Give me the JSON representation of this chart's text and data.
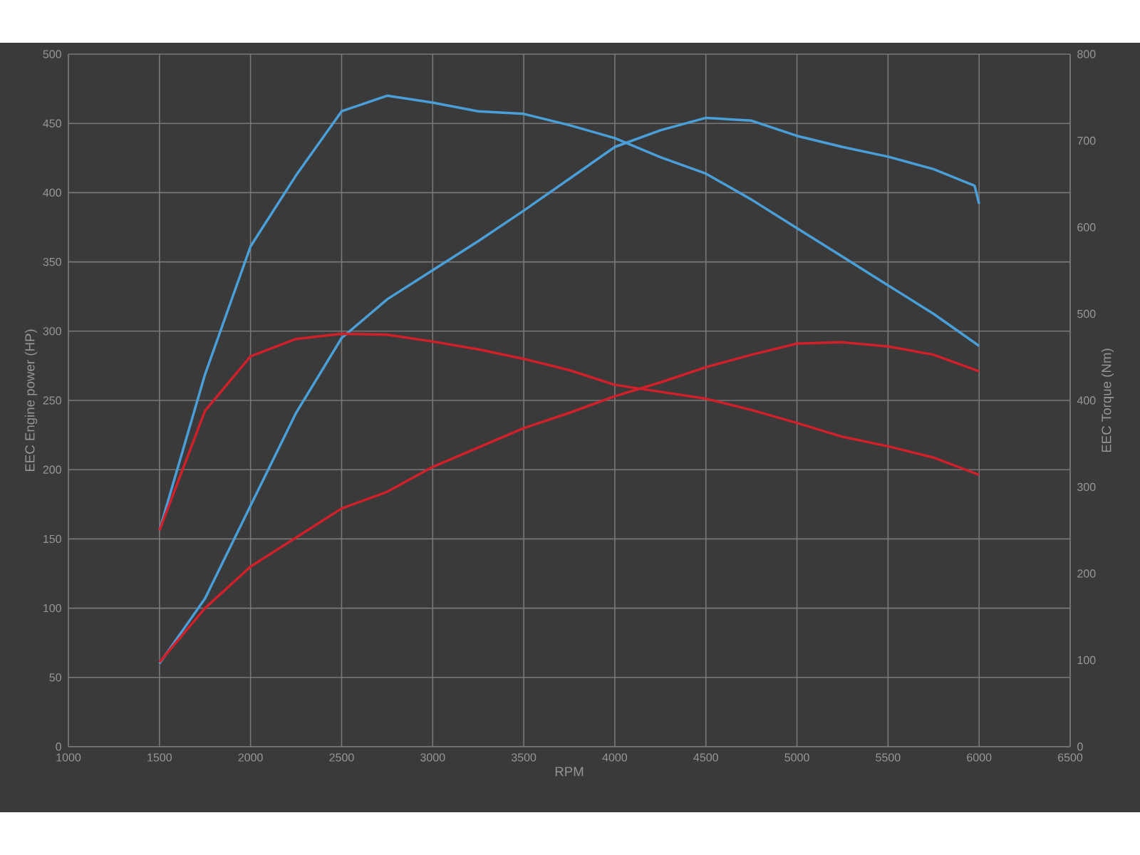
{
  "chart_data": {
    "type": "line",
    "xlabel": "RPM",
    "ylabel": "EEC Engine power (HP)",
    "y2label": "EEC Torque (Nm)",
    "x": [
      1500,
      1750,
      2000,
      2250,
      2500,
      2750,
      3000,
      3250,
      3500,
      3750,
      4000,
      4250,
      4500,
      4750,
      5000,
      5250,
      5500,
      5750,
      6000
    ],
    "xlim": [
      1000,
      6500
    ],
    "xticks": [
      1000,
      1500,
      2000,
      2500,
      3000,
      3500,
      4000,
      4500,
      5000,
      5500,
      6000,
      6500
    ],
    "ylim": [
      0,
      500
    ],
    "yticks": [
      0,
      50,
      100,
      150,
      200,
      250,
      300,
      350,
      400,
      450,
      500
    ],
    "y2lim": [
      0,
      800
    ],
    "y2ticks": [
      0,
      100,
      200,
      300,
      400,
      500,
      600,
      700,
      800
    ],
    "grid": true,
    "marker": "none",
    "line_style": "solid",
    "series": [
      {
        "color": "#4a9fd8",
        "x": [
          1500,
          1750,
          2000,
          2250,
          2500,
          2750,
          3000,
          3250,
          3500,
          3750,
          4000,
          4250,
          4500,
          4750,
          5000,
          5250,
          5500,
          5750,
          5975,
          6000
        ],
        "values": [
          60,
          107,
          174,
          241,
          295,
          323,
          344,
          365,
          387,
          410,
          433,
          445,
          454,
          452,
          441,
          433,
          426,
          417,
          405,
          392
        ]
      },
      {
        "color": "#4a9fd8",
        "axis": "y2",
        "values": [
          250,
          430,
          578,
          660,
          734,
          752,
          744,
          734,
          731,
          718,
          703,
          681,
          662,
          632,
          599,
          566,
          533,
          500,
          463
        ]
      },
      {
        "color": "#d0202a",
        "values": [
          61,
          100,
          130,
          151,
          172,
          184,
          202,
          216,
          230,
          241,
          253,
          263,
          274,
          283,
          291,
          292,
          289,
          283,
          271
        ]
      },
      {
        "color": "#d0202a",
        "axis": "y2",
        "values": [
          250,
          388,
          451,
          471,
          477,
          476,
          468,
          459,
          448,
          435,
          418,
          410,
          402,
          389,
          374,
          358,
          347,
          334,
          314
        ]
      }
    ]
  }
}
